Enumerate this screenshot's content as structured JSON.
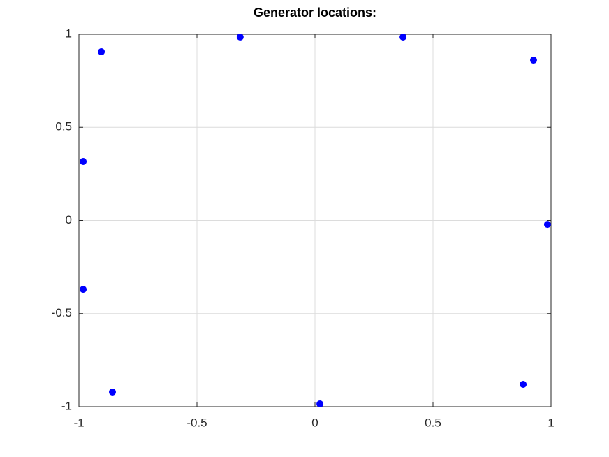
{
  "chart_data": {
    "type": "scatter",
    "title": "Generator locations:",
    "x": [
      -0.905,
      -0.317,
      0.373,
      0.926,
      -0.982,
      0.985,
      -0.982,
      0.882,
      -0.858,
      0.021
    ],
    "values": [
      0.906,
      0.985,
      0.985,
      0.861,
      0.317,
      -0.021,
      -0.37,
      -0.88,
      -0.921,
      -0.985
    ],
    "color": "#0000ff",
    "xlim": [
      -1,
      1
    ],
    "xticks": [
      -1,
      -0.5,
      0,
      0.5,
      1
    ],
    "ylim": [
      -1,
      1
    ],
    "yticks": [
      -1,
      -0.5,
      0,
      0.5,
      1
    ],
    "grid": true
  }
}
